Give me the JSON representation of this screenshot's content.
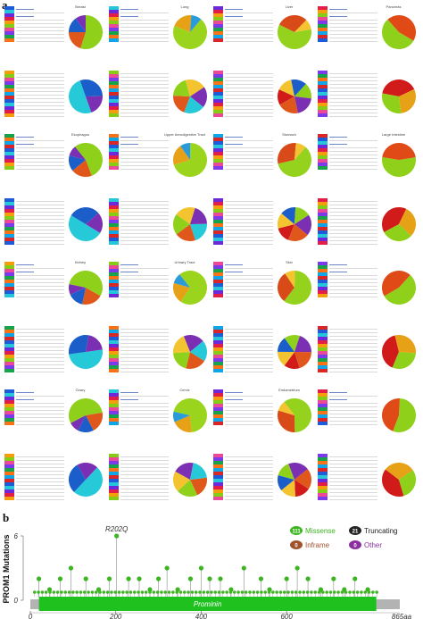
{
  "panels": {
    "a": "a",
    "b": "b"
  },
  "colors": {
    "missense": "#3cb521",
    "truncating": "#222222",
    "inframe": "#a0522d",
    "other": "#8b2fa0",
    "domain": "#1fc11f",
    "track": "#b3b3b3"
  },
  "grid": {
    "cancer_types": [
      {
        "name": "Breast"
      },
      {
        "name": "Lung"
      },
      {
        "name": "Liver"
      },
      {
        "name": "Pancreas"
      },
      {
        "name": ""
      },
      {
        "name": ""
      },
      {
        "name": ""
      },
      {
        "name": ""
      },
      {
        "name": "Esophagus"
      },
      {
        "name": "Upper Aerodigestive Tract"
      },
      {
        "name": "Stomach"
      },
      {
        "name": "Large Intestine"
      },
      {
        "name": ""
      },
      {
        "name": ""
      },
      {
        "name": ""
      },
      {
        "name": ""
      },
      {
        "name": "Kidney"
      },
      {
        "name": "Urinary Tract"
      },
      {
        "name": "Skin"
      },
      {
        "name": ""
      },
      {
        "name": ""
      },
      {
        "name": ""
      },
      {
        "name": ""
      },
      {
        "name": ""
      },
      {
        "name": "Ovary"
      },
      {
        "name": "Cervix"
      },
      {
        "name": "Endometrium"
      },
      {
        "name": ""
      },
      {
        "name": ""
      },
      {
        "name": ""
      },
      {
        "name": ""
      },
      {
        "name": ""
      }
    ]
  },
  "chart_data": {
    "type": "lollipop",
    "gene": "PROM1",
    "ylabel": "PROM1 Mutations",
    "xlim": [
      0,
      865
    ],
    "ylim": [
      0,
      6
    ],
    "x_ticks": [
      0,
      200,
      400,
      600
    ],
    "x_end_label": "865aa",
    "y_ticks": [
      0,
      6
    ],
    "domain": {
      "name": "Prominin",
      "start": 20,
      "end": 810
    },
    "hotspot": {
      "label": "R202Q",
      "position": 202,
      "count": 6
    },
    "legend": [
      {
        "count": "111",
        "label": "Missense",
        "color": "#3cb521"
      },
      {
        "count": "21",
        "label": "Truncating",
        "color": "#222222"
      },
      {
        "count": "0",
        "label": "Inframe",
        "color": "#a0522d"
      },
      {
        "count": "0",
        "label": "Other",
        "color": "#8b2fa0"
      }
    ],
    "mutations": [
      {
        "pos": 20,
        "count": 2
      },
      {
        "pos": 45,
        "count": 1
      },
      {
        "pos": 70,
        "count": 2
      },
      {
        "pos": 95,
        "count": 3
      },
      {
        "pos": 130,
        "count": 2
      },
      {
        "pos": 160,
        "count": 1
      },
      {
        "pos": 185,
        "count": 2
      },
      {
        "pos": 202,
        "count": 6
      },
      {
        "pos": 230,
        "count": 2
      },
      {
        "pos": 255,
        "count": 2
      },
      {
        "pos": 280,
        "count": 1
      },
      {
        "pos": 300,
        "count": 2
      },
      {
        "pos": 320,
        "count": 3
      },
      {
        "pos": 345,
        "count": 1
      },
      {
        "pos": 375,
        "count": 2
      },
      {
        "pos": 400,
        "count": 3
      },
      {
        "pos": 420,
        "count": 2
      },
      {
        "pos": 445,
        "count": 2
      },
      {
        "pos": 470,
        "count": 1
      },
      {
        "pos": 500,
        "count": 3
      },
      {
        "pos": 540,
        "count": 2
      },
      {
        "pos": 560,
        "count": 1
      },
      {
        "pos": 600,
        "count": 2
      },
      {
        "pos": 625,
        "count": 3
      },
      {
        "pos": 650,
        "count": 2
      },
      {
        "pos": 680,
        "count": 1
      },
      {
        "pos": 710,
        "count": 2
      },
      {
        "pos": 735,
        "count": 1
      },
      {
        "pos": 760,
        "count": 2
      },
      {
        "pos": 790,
        "count": 1
      }
    ]
  }
}
